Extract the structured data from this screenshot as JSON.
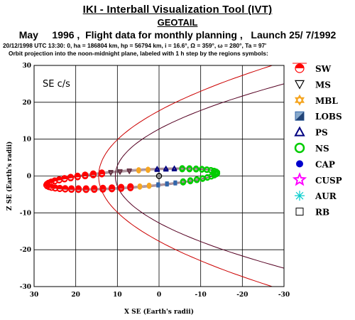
{
  "header": {
    "title": "IKI - Interball Visualization Tool (IVT)",
    "subtitle": "GEOTAIL",
    "flight_line": "May     1996 ,  Flight data for monthly planning ,   Launch 25/ 7/1992",
    "orbit_line": "20/12/1998 UTC 13:30: 0, ha = 186804 km, hp = 56794 km, i = 16.6°, Ω = 359°, ω = 280°, Ta =  97'",
    "info_line": "Orbit projection into the noon-midnight plane, labeled with 1 h step by the regions symbols:"
  },
  "chart_data": {
    "type": "scatter",
    "panel_label": "SE c/s",
    "xlabel": "X SE (Earth's radii)",
    "ylabel": "Z SE (Earth's radii)",
    "xlim": [
      30,
      -30
    ],
    "ylim": [
      -30,
      30
    ],
    "x_ticks": [
      30,
      20,
      10,
      0,
      -10,
      -20,
      -30
    ],
    "y_ticks": [
      -30,
      -20,
      -10,
      0,
      10,
      20,
      30
    ],
    "x_tick_labels": [
      "30",
      "20",
      "10",
      "0",
      "-10",
      "-20",
      "-30"
    ],
    "y_tick_labels": [
      "-30",
      "-20",
      "-10",
      "0",
      "10",
      "20",
      "30"
    ],
    "grid": true,
    "boundaries": [
      {
        "name": "bow shock",
        "color": "#cc0000",
        "nose_x": 14.5,
        "flank_at_x_minus_30": 31
      },
      {
        "name": "magnetopause",
        "color": "#550022",
        "nose_x": 10.5,
        "flank_at_x_minus_30": 25
      }
    ],
    "orbit": [
      {
        "region": "SW",
        "color": "#ff0000",
        "x_range": [
          27,
          6
        ],
        "z_center": -2.5
      },
      {
        "region": "MS",
        "color": "#663344",
        "x_range": [
          13,
          -5
        ],
        "z_center": -0.5
      },
      {
        "region": "MBL",
        "color": "#f5a623",
        "x_range": [
          5,
          -1
        ],
        "z_center": 0.5
      },
      {
        "region": "LOBS",
        "color": "#3366aa",
        "x_range": [
          -1,
          -7
        ],
        "z_center": 0.8
      },
      {
        "region": "PS",
        "color": "#000080",
        "x_range": [
          0,
          -10
        ],
        "z_center": 1.0
      },
      {
        "region": "NS",
        "color": "#00cc00",
        "x_range": [
          -3,
          -14
        ],
        "z_center": 1.0
      }
    ],
    "legend_placement": "right",
    "legend": [
      {
        "label": "SW",
        "symbol": "sw",
        "color": "#ff0000"
      },
      {
        "label": "MS",
        "symbol": "triangle-down",
        "color": "#000000"
      },
      {
        "label": "MBL",
        "symbol": "star6",
        "color": "#f5a623"
      },
      {
        "label": "LOBS",
        "symbol": "square-half",
        "color": "#3366aa"
      },
      {
        "label": "PS",
        "symbol": "triangle-up",
        "color": "#000080"
      },
      {
        "label": "NS",
        "symbol": "circle",
        "color": "#00cc00"
      },
      {
        "label": "CAP",
        "symbol": "dot",
        "color": "#0000cc"
      },
      {
        "label": "CUSP",
        "symbol": "star5",
        "color": "#ff00ff"
      },
      {
        "label": "AUR",
        "symbol": "asterisk",
        "color": "#00cccc"
      },
      {
        "label": "RB",
        "symbol": "square",
        "color": "#000000"
      }
    ]
  }
}
